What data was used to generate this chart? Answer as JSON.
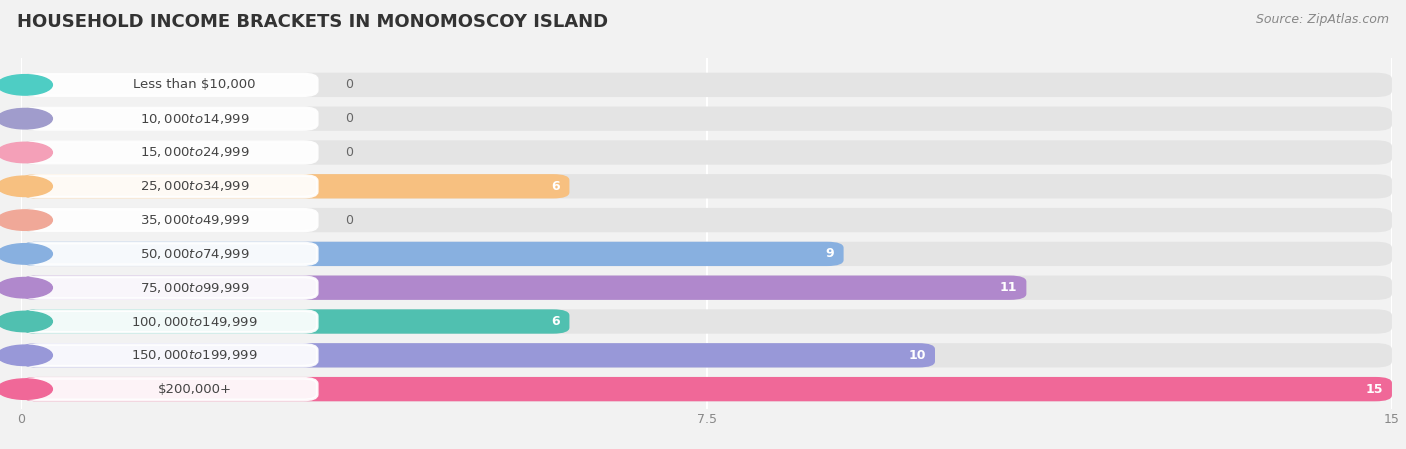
{
  "title": "HOUSEHOLD INCOME BRACKETS IN MONOMOSCOY ISLAND",
  "source": "Source: ZipAtlas.com",
  "categories": [
    "Less than $10,000",
    "$10,000 to $14,999",
    "$15,000 to $24,999",
    "$25,000 to $34,999",
    "$35,000 to $49,999",
    "$50,000 to $74,999",
    "$75,000 to $99,999",
    "$100,000 to $149,999",
    "$150,000 to $199,999",
    "$200,000+"
  ],
  "values": [
    0,
    0,
    0,
    6,
    0,
    9,
    11,
    6,
    10,
    15
  ],
  "bar_colors": [
    "#4ecdc4",
    "#a09ccc",
    "#f4a0b8",
    "#f7c080",
    "#f0a898",
    "#88b0e0",
    "#b088cc",
    "#50c0b0",
    "#9898d8",
    "#f06898"
  ],
  "background_color": "#f2f2f2",
  "row_bg_color": "#e4e4e4",
  "xlim": [
    0,
    15
  ],
  "xticks": [
    0,
    7.5,
    15
  ],
  "title_fontsize": 13,
  "label_fontsize": 9.5,
  "value_fontsize": 9,
  "source_fontsize": 9
}
